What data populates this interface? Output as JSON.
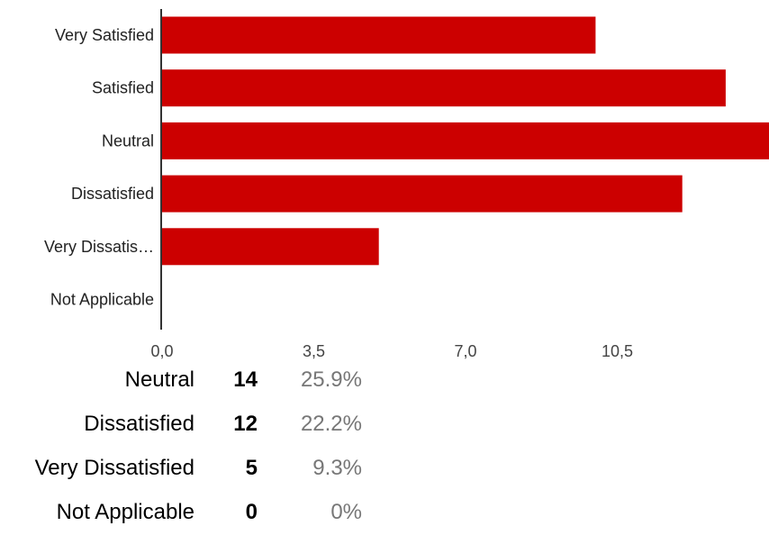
{
  "chart_data": {
    "type": "bar",
    "orientation": "horizontal",
    "categories": [
      "Very Satisfied",
      "Satisfied",
      "Neutral",
      "Dissatisfied",
      "Very Dissatis…",
      "Not Applicable"
    ],
    "values": [
      10,
      13,
      14,
      12,
      5,
      0
    ],
    "xticks": [
      "0,0",
      "3,5",
      "7,0",
      "10,5"
    ],
    "xtick_values": [
      0,
      3.5,
      7,
      10.5
    ],
    "xlim": [
      0,
      14
    ],
    "bar_color": "#cc0000",
    "axis_color": "#333333",
    "grid": false
  },
  "summary": [
    {
      "label": "Neutral",
      "count": "14",
      "percent": "25.9%"
    },
    {
      "label": "Dissatisfied",
      "count": "12",
      "percent": "22.2%"
    },
    {
      "label": "Very Dissatisfied",
      "count": "5",
      "percent": "9.3%"
    },
    {
      "label": "Not Applicable",
      "count": "0",
      "percent": "0%"
    }
  ]
}
